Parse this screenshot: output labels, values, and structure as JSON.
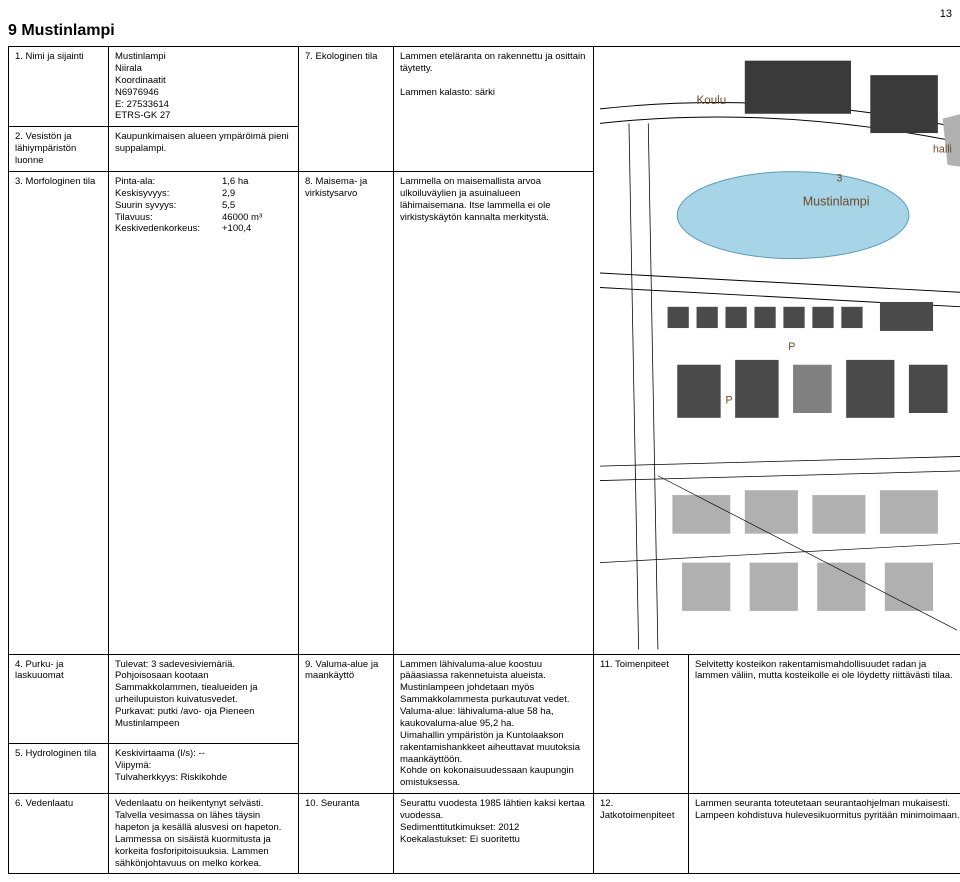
{
  "page_number": "13",
  "title": "9 Mustinlampi",
  "rows": {
    "r1": {
      "label": "1. Nimi ja sijainti",
      "content": "Mustinlampi\nNiirala\nKoordinaatit\nN6976946\nE: 27533614\nETRS-GK 27"
    },
    "r2": {
      "label": "2. Vesistön ja lähiympäristön luonne",
      "content": "Kaupunkimaisen alueen ympäröimä pieni suppalampi."
    },
    "r3": {
      "label": "3. Morfologinen tila",
      "kv": [
        {
          "k": "Pinta-ala:",
          "v": "1,6 ha"
        },
        {
          "k": "Keskisyvyys:",
          "v": "2,9"
        },
        {
          "k": "Suurin syvyys:",
          "v": "5,5"
        },
        {
          "k": "Tilavuus:",
          "v": "46000 m³"
        },
        {
          "k": "Keskivedenkorkeus:",
          "v": "+100,4"
        }
      ]
    },
    "r4": {
      "label": "4. Purku- ja laskuuomat",
      "content": "Tulevat: 3 sadevesiviemäriä. Pohjoisosaan kootaan Sammakkolammen, tiealueiden ja urheilupuiston kuivatusvedet.\nPurkavat: putki /avo- oja Pieneen Mustinlampeen"
    },
    "r5": {
      "label": "5. Hydrologinen tila",
      "content": "Keskivirtaama (l/s): --\nViipymä:\nTulvaherkkyys: Riskikohde"
    },
    "r6": {
      "label": "6. Vedenlaatu",
      "content": "Vedenlaatu on heikentynyt selvästi. Talvella vesimassa on lähes täysin hapeton ja kesällä alusvesi on hapeton. Lammessa on sisäistä kuormitusta ja korkeita fosforipitoisuuksia. Lammen sähkönjohtavuus on melko korkea."
    },
    "r7": {
      "label": "7. Ekologinen tila",
      "content": "Lammen eteläranta on rakennettu ja osittain täytetty.\n\nLammen kalasto: särki"
    },
    "r8": {
      "label": "8. Maisema- ja virkistysarvo",
      "content": "Lammella on maisemallista arvoa ulkoiluväylien ja asuinalueen lähimaisemana. Itse lammella ei ole virkistyskäytön kannalta merkitystä."
    },
    "r9": {
      "label": "9. Valuma-alue ja maankäyttö",
      "content": "Lammen lähivaluma-alue koostuu pääasiassa rakennetuista alueista. Mustinlampeen johdetaan myös Sammakkolammesta purkautuvat vedet.\nValuma-alue: lähivaluma-alue 58 ha, kaukovaluma-alue 95,2 ha.\nUimahallin ympäristön ja Kuntolaakson rakentamishankkeet aiheuttavat muutoksia maankäyttöön.\nKohde on kokonaisuudessaan kaupungin omistuksessa."
    },
    "r10": {
      "label": "10. Seuranta",
      "content": "Seurattu vuodesta 1985 lähtien kaksi kertaa vuodessa.\nSedimenttitutkimukset: 2012\nKoekalastukset: Ei suoritettu"
    },
    "r11": {
      "label": "11. Toimenpiteet",
      "content": "Selvitetty kosteikon rakentamismahdollisuudet radan ja lammen väliin, mutta kosteikolle ei ole löydetty riittävästi tilaa."
    },
    "r12": {
      "label": "12. Jatkotoimenpiteet",
      "content": "Lammen seuranta toteutetaan seurantaohjelman mukaisesti. Lampeen kohdistuva hulevesikuormitus pyritään minimoimaan."
    }
  },
  "map": {
    "bg": "#ffffff",
    "water": "#a8d4e8",
    "building": "#3a3a3a",
    "building_light": "#b0b0b0",
    "road": "#ffffff",
    "road_stroke": "#000000",
    "small_bldg": "#4a4a4a",
    "labels": {
      "koulu": "Koulu",
      "halli": "halli",
      "num3": "3",
      "name": "Mustinlampi",
      "P1": "P",
      "P2": "P"
    },
    "label_color": "#6b4a2a",
    "label_fontsize": 10
  }
}
